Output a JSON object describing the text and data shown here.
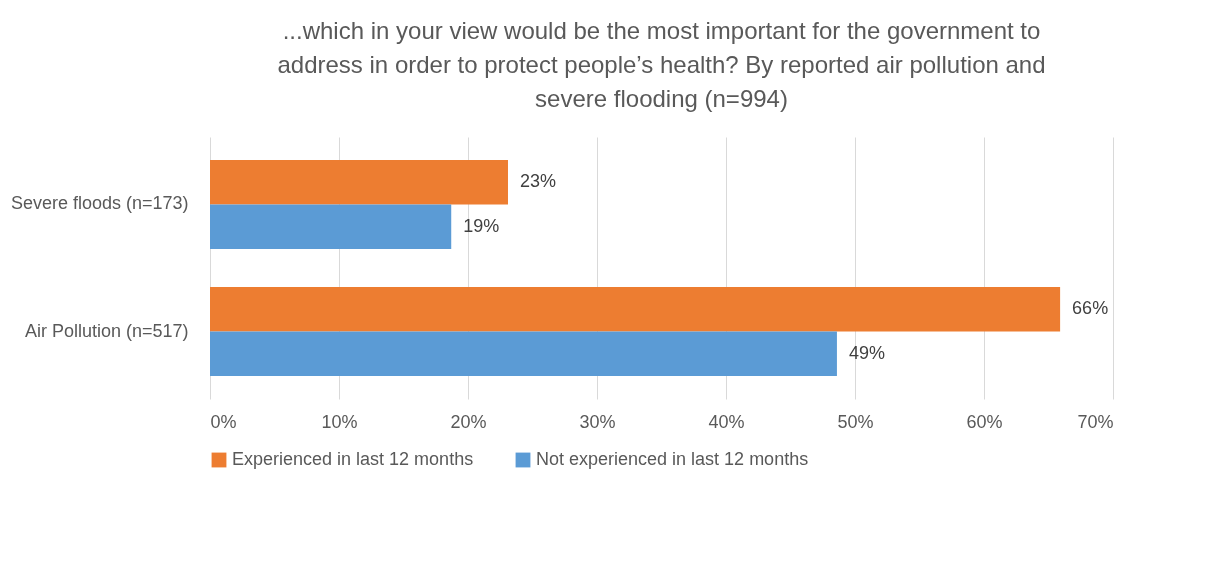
{
  "chart_data": {
    "type": "bar",
    "orientation": "horizontal",
    "title": "...which in your view would be the most important for the government to address in order to protect people’s health? By reported air pollution and severe flooding (n=994)",
    "categories": [
      "Severe floods (n=173)",
      "Air Pollution (n=517)"
    ],
    "series": [
      {
        "name": "Experienced in last 12 months",
        "color": "#ed7d31",
        "values": [
          23.1,
          65.9
        ],
        "value_labels": [
          "23%",
          "66%"
        ]
      },
      {
        "name": "Not experienced in last 12 months",
        "color": "#5b9bd5",
        "values": [
          18.7,
          48.6
        ],
        "value_labels": [
          "19%",
          "49%"
        ]
      }
    ],
    "xlim": [
      0,
      70
    ],
    "xticks": [
      {
        "value": 0,
        "label": "0%"
      },
      {
        "value": 10,
        "label": "10%"
      },
      {
        "value": 20,
        "label": "20%"
      },
      {
        "value": 30,
        "label": "30%"
      },
      {
        "value": 40,
        "label": "40%"
      },
      {
        "value": 50,
        "label": "50%"
      },
      {
        "value": 60,
        "label": "60%"
      },
      {
        "value": 70,
        "label": "70%"
      }
    ],
    "grid": "x",
    "legend": "bottom"
  }
}
